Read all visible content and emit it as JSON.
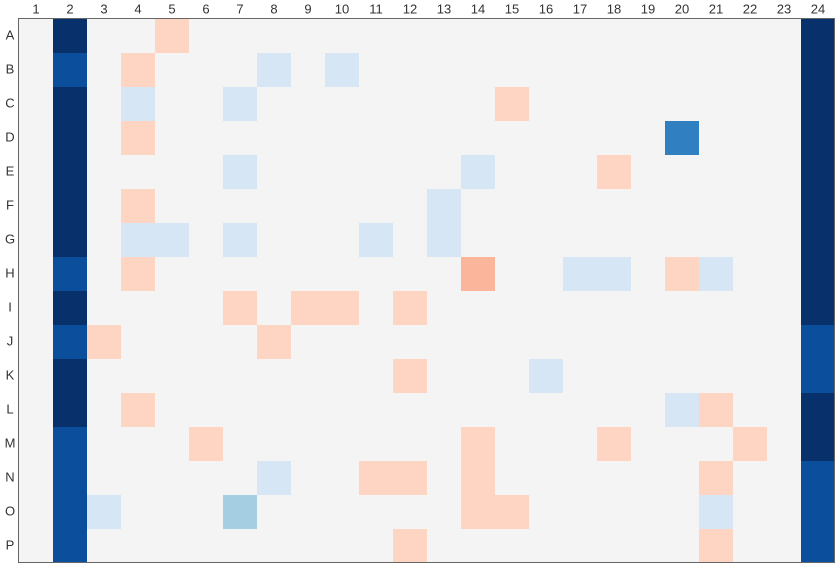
{
  "chart_data": {
    "type": "heatmap",
    "x": [
      "1",
      "2",
      "3",
      "4",
      "5",
      "6",
      "7",
      "8",
      "9",
      "10",
      "11",
      "12",
      "13",
      "14",
      "15",
      "16",
      "17",
      "18",
      "19",
      "20",
      "21",
      "22",
      "23",
      "24"
    ],
    "y": [
      "A",
      "B",
      "C",
      "D",
      "E",
      "F",
      "G",
      "H",
      "I",
      "J",
      "K",
      "L",
      "M",
      "N",
      "O",
      "P"
    ],
    "colorscale": [
      [
        -1,
        "#08306b"
      ],
      [
        -0.8,
        "#0b4f9c"
      ],
      [
        -0.6,
        "#2f7fc1"
      ],
      [
        -0.3,
        "#a6cee3"
      ],
      [
        -0.1,
        "#d6e6f4"
      ],
      [
        0,
        "#f4f4f4"
      ],
      [
        0.1,
        "#fdd5c2"
      ],
      [
        0.25,
        "#fbb59a"
      ]
    ],
    "values": [
      [
        0,
        -1,
        0,
        0,
        0.1,
        0,
        0,
        0,
        0,
        0,
        0,
        0,
        0,
        0,
        0,
        0,
        0,
        0,
        0,
        0,
        0,
        0,
        0,
        -1
      ],
      [
        0,
        -0.8,
        0,
        0.1,
        0,
        0,
        0,
        -0.1,
        0,
        -0.1,
        0,
        0,
        0,
        0,
        0,
        0,
        0,
        0,
        0,
        0,
        0,
        0,
        0,
        -1
      ],
      [
        0,
        -1,
        0,
        -0.1,
        0,
        0,
        -0.1,
        0,
        0,
        0,
        0,
        0,
        0,
        0,
        0.1,
        0,
        0,
        0,
        0,
        0,
        0,
        0,
        0,
        -1
      ],
      [
        0,
        -1,
        0,
        0.1,
        0,
        0,
        0,
        0,
        0,
        0,
        0,
        0,
        0,
        0,
        0,
        0,
        0,
        0,
        0,
        -0.6,
        0,
        0,
        0,
        -1
      ],
      [
        0,
        -1,
        0,
        0,
        0,
        0,
        -0.1,
        0,
        0,
        0,
        0,
        0,
        0,
        -0.1,
        0,
        0,
        0,
        0.1,
        0,
        0,
        0,
        0,
        0,
        -1
      ],
      [
        0,
        -1,
        0,
        0.1,
        0,
        0,
        0,
        0,
        0,
        0,
        0,
        0,
        -0.1,
        0,
        0,
        0,
        0,
        0,
        0,
        0,
        0,
        0,
        0,
        -1
      ],
      [
        0,
        -1,
        0,
        -0.1,
        -0.1,
        0,
        -0.1,
        0,
        0,
        0,
        -0.1,
        0,
        -0.1,
        0,
        0,
        0,
        0,
        0,
        0,
        0,
        0,
        0,
        0,
        -1
      ],
      [
        0,
        -0.8,
        0,
        0.1,
        0,
        0,
        0,
        0,
        0,
        0,
        0,
        0,
        0,
        0.25,
        0,
        0,
        -0.1,
        -0.1,
        0,
        0.1,
        -0.1,
        0,
        0,
        -1
      ],
      [
        0,
        -1,
        0,
        0,
        0,
        0,
        0.1,
        0,
        0.1,
        0.1,
        0,
        0.1,
        0,
        0,
        0,
        0,
        0,
        0,
        0,
        0,
        0,
        0,
        0,
        -1
      ],
      [
        0,
        -0.8,
        0.1,
        0,
        0,
        0,
        0,
        0.1,
        0,
        0,
        0,
        0,
        0,
        0,
        0,
        0,
        0,
        0,
        0,
        0,
        0,
        0,
        0,
        -0.8
      ],
      [
        0,
        -1,
        0,
        0,
        0,
        0,
        0,
        0,
        0,
        0,
        0,
        0.1,
        0,
        0,
        0,
        -0.1,
        0,
        0,
        0,
        0,
        0,
        0,
        0,
        -0.8
      ],
      [
        0,
        -1,
        0,
        0.1,
        0,
        0,
        0,
        0,
        0,
        0,
        0,
        0,
        0,
        0,
        0,
        0,
        0,
        0,
        0,
        -0.1,
        0.1,
        0,
        0,
        -1
      ],
      [
        0,
        -0.8,
        0,
        0,
        0,
        0.1,
        0,
        0,
        0,
        0,
        0,
        0,
        0,
        0.1,
        0,
        0,
        0,
        0.1,
        0,
        0,
        0,
        0.1,
        0,
        -1
      ],
      [
        0,
        -0.8,
        0,
        0,
        0,
        0,
        0,
        -0.1,
        0,
        0,
        0.1,
        0.1,
        0,
        0.1,
        0,
        0,
        0,
        0,
        0,
        0,
        0.1,
        0,
        0,
        -0.8
      ],
      [
        0,
        -0.8,
        -0.1,
        0,
        0,
        0,
        -0.3,
        0,
        0,
        0,
        0,
        0,
        0,
        0.1,
        0.1,
        0,
        0,
        0,
        0,
        0,
        -0.1,
        0,
        0,
        -0.8
      ],
      [
        0,
        -0.8,
        0,
        0,
        0,
        0,
        0,
        0,
        0,
        0,
        0,
        0.1,
        0,
        0,
        0,
        0,
        0,
        0,
        0,
        0,
        0.1,
        0,
        0,
        -0.8
      ]
    ]
  }
}
